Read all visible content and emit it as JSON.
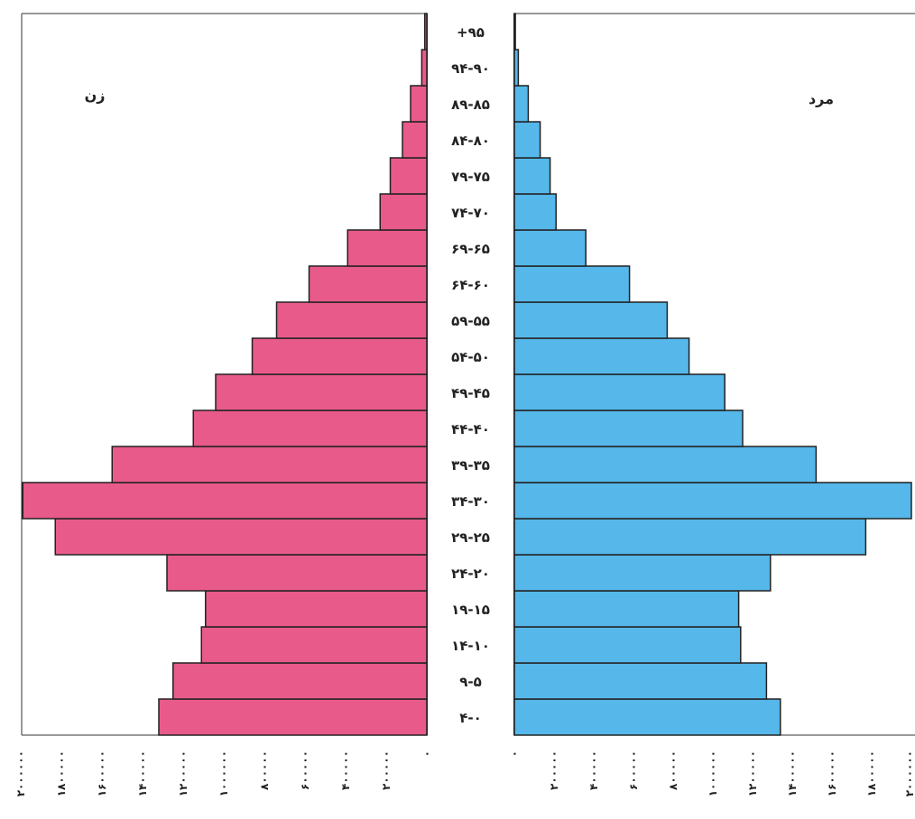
{
  "chart_data": {
    "type": "bar",
    "orientation": "horizontal",
    "categories": [
      "۴-۰",
      "۹-۵",
      "۱۴-۱۰",
      "۱۹-۱۵",
      "۲۴-۲۰",
      "۲۹-۲۵",
      "۳۴-۳۰",
      "۳۹-۳۵",
      "۴۴-۴۰",
      "۴۹-۴۵",
      "۵۴-۵۰",
      "۵۹-۵۵",
      "۶۴-۶۰",
      "۶۹-۶۵",
      "۷۴-۷۰",
      "۷۹-۷۵",
      "۸۴-۸۰",
      "۸۹-۸۵",
      "۹۴-۹۰",
      "+۹۵"
    ],
    "series": [
      {
        "name": "زن",
        "color": "#e85a8a",
        "values": [
          1320000,
          1250000,
          1110000,
          1090000,
          1280000,
          1830000,
          1990000,
          1550000,
          1150000,
          1040000,
          860000,
          740000,
          580000,
          390000,
          230000,
          180000,
          120000,
          80000,
          25000,
          10000
        ]
      },
      {
        "name": "مرد",
        "color": "#55b7ea",
        "values": [
          1340000,
          1270000,
          1140000,
          1130000,
          1290000,
          1770000,
          2000000,
          1520000,
          1150000,
          1060000,
          880000,
          770000,
          580000,
          360000,
          210000,
          180000,
          130000,
          70000,
          20000,
          5000
        ]
      }
    ],
    "xlim": [
      0,
      2000000
    ],
    "tick_values": [
      0,
      200000,
      400000,
      600000,
      800000,
      1000000,
      1200000,
      1400000,
      1600000,
      1800000,
      2000000
    ],
    "tick_labels_left": [
      "۰",
      "۲۰۰۰۰۰",
      "۴۰۰۰۰۰",
      "۶۰۰۰۰۰",
      "۸۰۰۰۰۰",
      "۱۰۰۰۰۰۰",
      "۱۲۰۰۰۰۰",
      "۱۴۰۰۰۰۰",
      "۱۶۰۰۰۰۰",
      "۱۸۰۰۰۰۰",
      "۲۰۰۰۰۰۰"
    ],
    "tick_labels_right": [
      "۰",
      "۲۰۰۰۰۰",
      "۴۰۰۰۰۰",
      "۶۰۰۰۰۰",
      "۸۰۰۰۰۰",
      "۱۰۰۰۰۰۰",
      "۱۲۰۰۰۰۰",
      "۱۴۰۰۰۰۰",
      "۱۶۰۰۰۰۰",
      "۱۸۰۰۰۰۰",
      "۲۰۰۰۰۰۰"
    ],
    "grid": false
  }
}
